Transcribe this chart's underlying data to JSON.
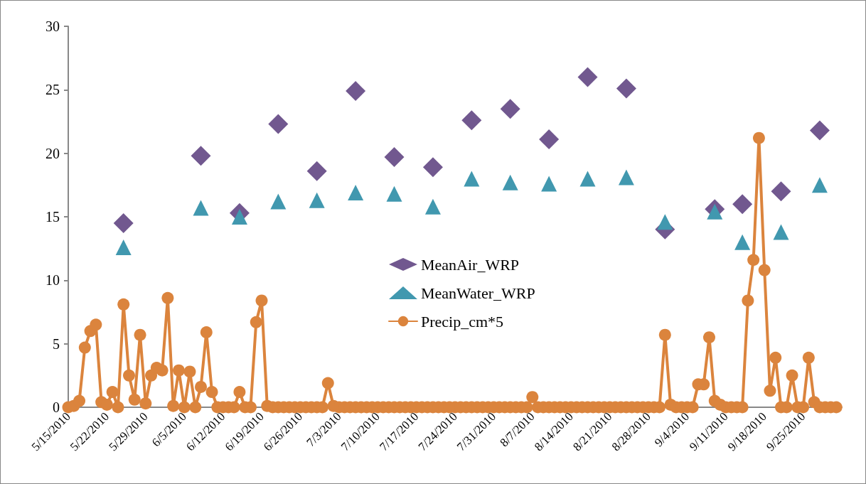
{
  "chart_data": {
    "type": "line",
    "xlim": [
      "2010-05-15",
      "2010-10-02"
    ],
    "xticks": [
      {
        "value": "2010-05-15",
        "label": "5/15/2010"
      },
      {
        "value": "2010-05-22",
        "label": "5/22/2010"
      },
      {
        "value": "2010-05-29",
        "label": "5/29/2010"
      },
      {
        "value": "2010-06-05",
        "label": "6/5/2010"
      },
      {
        "value": "2010-06-12",
        "label": "6/12/2010"
      },
      {
        "value": "2010-06-19",
        "label": "6/19/2010"
      },
      {
        "value": "2010-06-26",
        "label": "6/26/2010"
      },
      {
        "value": "2010-07-03",
        "label": "7/3/2010"
      },
      {
        "value": "2010-07-10",
        "label": "7/10/2010"
      },
      {
        "value": "2010-07-17",
        "label": "7/17/2010"
      },
      {
        "value": "2010-07-24",
        "label": "7/24/2010"
      },
      {
        "value": "2010-07-31",
        "label": "7/31/2010"
      },
      {
        "value": "2010-08-07",
        "label": "8/7/2010"
      },
      {
        "value": "2010-08-14",
        "label": "8/14/2010"
      },
      {
        "value": "2010-08-21",
        "label": "8/21/2010"
      },
      {
        "value": "2010-08-28",
        "label": "8/28/2010"
      },
      {
        "value": "2010-09-04",
        "label": "9/4/2010"
      },
      {
        "value": "2010-09-11",
        "label": "9/11/2010"
      },
      {
        "value": "2010-09-18",
        "label": "9/18/2010"
      },
      {
        "value": "2010-09-25",
        "label": "9/25/2010"
      }
    ],
    "ylim": [
      0,
      30
    ],
    "yticks": [
      0,
      5,
      10,
      15,
      20,
      25,
      30
    ],
    "grid": false,
    "legend": "center",
    "series": [
      {
        "name": "MeanAir_WRP",
        "type": "scatter",
        "marker": "diamond",
        "color": "#71588f",
        "x": [
          "2010-05-25",
          "2010-06-08",
          "2010-06-15",
          "2010-06-22",
          "2010-06-29",
          "2010-07-06",
          "2010-07-13",
          "2010-07-20",
          "2010-07-27",
          "2010-08-03",
          "2010-08-10",
          "2010-08-17",
          "2010-08-24",
          "2010-08-31",
          "2010-09-09",
          "2010-09-14",
          "2010-09-21",
          "2010-09-28"
        ],
        "values": [
          14.5,
          19.8,
          15.3,
          22.3,
          18.6,
          24.9,
          19.7,
          18.9,
          22.6,
          23.5,
          21.1,
          26.0,
          25.1,
          14.0,
          15.6,
          16.0,
          17.0,
          21.8
        ]
      },
      {
        "name": "MeanWater_WRP",
        "type": "scatter",
        "marker": "triangle",
        "color": "#4198af",
        "x": [
          "2010-05-25",
          "2010-06-08",
          "2010-06-15",
          "2010-06-22",
          "2010-06-29",
          "2010-07-06",
          "2010-07-13",
          "2010-07-20",
          "2010-07-27",
          "2010-08-03",
          "2010-08-10",
          "2010-08-17",
          "2010-08-24",
          "2010-08-31",
          "2010-09-09",
          "2010-09-14",
          "2010-09-21",
          "2010-09-28"
        ],
        "values": [
          12.6,
          15.7,
          15.0,
          16.2,
          16.3,
          16.9,
          16.8,
          15.8,
          18.0,
          17.7,
          17.6,
          18.0,
          18.1,
          14.6,
          15.4,
          13.0,
          13.8,
          17.5
        ]
      },
      {
        "name": "Precip_cm*5",
        "type": "line",
        "marker": "circle",
        "line_style": "solid",
        "color": "#db843d",
        "x": [
          "2010-05-15",
          "2010-05-16",
          "2010-05-17",
          "2010-05-18",
          "2010-05-19",
          "2010-05-20",
          "2010-05-21",
          "2010-05-22",
          "2010-05-23",
          "2010-05-24",
          "2010-05-25",
          "2010-05-26",
          "2010-05-27",
          "2010-05-28",
          "2010-05-29",
          "2010-05-30",
          "2010-05-31",
          "2010-06-01",
          "2010-06-02",
          "2010-06-03",
          "2010-06-04",
          "2010-06-05",
          "2010-06-06",
          "2010-06-07",
          "2010-06-08",
          "2010-06-09",
          "2010-06-10",
          "2010-06-11",
          "2010-06-12",
          "2010-06-13",
          "2010-06-14",
          "2010-06-15",
          "2010-06-16",
          "2010-06-17",
          "2010-06-18",
          "2010-06-19",
          "2010-06-20",
          "2010-06-21",
          "2010-06-22",
          "2010-06-23",
          "2010-06-24",
          "2010-06-25",
          "2010-06-26",
          "2010-06-27",
          "2010-06-28",
          "2010-06-29",
          "2010-06-30",
          "2010-07-01",
          "2010-07-02",
          "2010-07-03",
          "2010-07-04",
          "2010-07-05",
          "2010-07-06",
          "2010-07-07",
          "2010-07-08",
          "2010-07-09",
          "2010-07-10",
          "2010-07-11",
          "2010-07-12",
          "2010-07-13",
          "2010-07-14",
          "2010-07-15",
          "2010-07-16",
          "2010-07-17",
          "2010-07-18",
          "2010-07-19",
          "2010-07-20",
          "2010-07-21",
          "2010-07-22",
          "2010-07-23",
          "2010-07-24",
          "2010-07-25",
          "2010-07-26",
          "2010-07-27",
          "2010-07-28",
          "2010-07-29",
          "2010-07-30",
          "2010-07-31",
          "2010-08-01",
          "2010-08-02",
          "2010-08-03",
          "2010-08-04",
          "2010-08-05",
          "2010-08-06",
          "2010-08-07",
          "2010-08-08",
          "2010-08-09",
          "2010-08-10",
          "2010-08-11",
          "2010-08-12",
          "2010-08-13",
          "2010-08-14",
          "2010-08-15",
          "2010-08-16",
          "2010-08-17",
          "2010-08-18",
          "2010-08-19",
          "2010-08-20",
          "2010-08-21",
          "2010-08-22",
          "2010-08-23",
          "2010-08-24",
          "2010-08-25",
          "2010-08-26",
          "2010-08-27",
          "2010-08-28",
          "2010-08-29",
          "2010-08-30",
          "2010-08-31",
          "2010-09-01",
          "2010-09-02",
          "2010-09-03",
          "2010-09-04",
          "2010-09-05",
          "2010-09-06",
          "2010-09-07",
          "2010-09-08",
          "2010-09-09",
          "2010-09-10",
          "2010-09-11",
          "2010-09-12",
          "2010-09-13",
          "2010-09-14",
          "2010-09-15",
          "2010-09-16",
          "2010-09-17",
          "2010-09-18",
          "2010-09-19",
          "2010-09-20",
          "2010-09-21",
          "2010-09-22",
          "2010-09-23",
          "2010-09-24",
          "2010-09-25",
          "2010-09-26",
          "2010-09-27",
          "2010-09-28",
          "2010-09-29",
          "2010-09-30",
          "2010-10-01"
        ],
        "values": [
          0,
          0.1,
          0.5,
          4.7,
          6.0,
          6.5,
          0.4,
          0.2,
          1.2,
          0,
          8.1,
          2.5,
          0.6,
          5.7,
          0.3,
          2.5,
          3.1,
          2.9,
          8.6,
          0.1,
          2.9,
          0,
          2.8,
          0,
          1.6,
          5.9,
          1.2,
          0,
          0,
          0,
          0,
          1.2,
          0,
          0,
          6.7,
          8.4,
          0.1,
          0,
          0,
          0,
          0,
          0,
          0,
          0,
          0,
          0,
          0,
          1.9,
          0.1,
          0,
          0,
          0,
          0,
          0,
          0,
          0,
          0,
          0,
          0,
          0,
          0,
          0,
          0,
          0,
          0,
          0,
          0,
          0,
          0,
          0,
          0,
          0,
          0,
          0,
          0,
          0,
          0,
          0,
          0,
          0,
          0,
          0,
          0,
          0,
          0.8,
          0,
          0,
          0,
          0,
          0,
          0,
          0,
          0,
          0,
          0,
          0,
          0,
          0,
          0,
          0,
          0,
          0,
          0,
          0,
          0,
          0,
          0,
          0,
          5.7,
          0.2,
          0,
          0,
          0,
          0,
          1.8,
          1.8,
          5.5,
          0.5,
          0.2,
          0,
          0,
          0,
          0,
          8.4,
          11.6,
          21.2,
          10.8,
          1.3,
          3.9,
          0,
          0,
          2.5,
          0,
          0,
          3.9,
          0.4,
          0,
          0,
          0,
          0
        ]
      }
    ]
  }
}
